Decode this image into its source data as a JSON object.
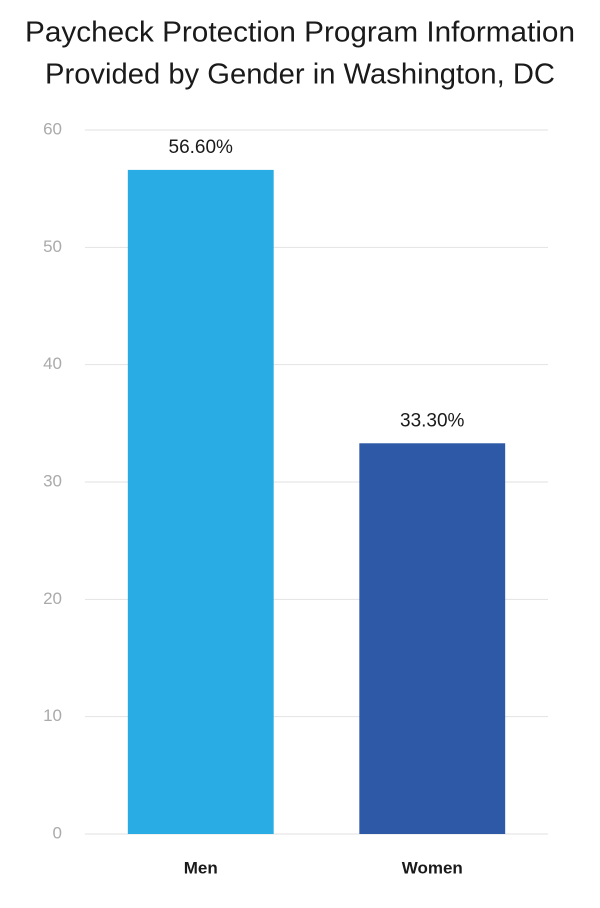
{
  "chart_data": {
    "type": "bar",
    "title": [
      "Paycheck Protection Program Information",
      "Provided by Gender in Washington, DC"
    ],
    "categories": [
      "Men",
      "Women"
    ],
    "values": [
      56.6,
      33.3
    ],
    "value_labels": [
      "56.60%",
      "33.30%"
    ],
    "colors": [
      "#29abe3",
      "#2d59a6"
    ],
    "ylim": [
      0,
      60
    ],
    "yticks": [
      0,
      10,
      20,
      30,
      40,
      50,
      60
    ],
    "grid": true
  }
}
